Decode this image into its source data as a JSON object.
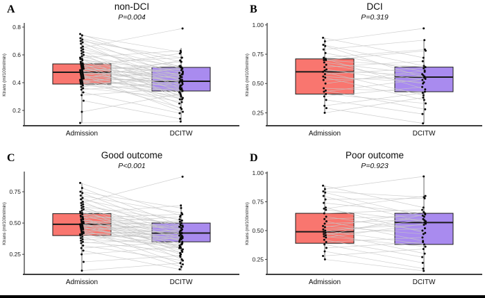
{
  "figure": {
    "background": "#ffffff",
    "bottom_bar_color": "#000000"
  },
  "styles": {
    "box_colors": [
      "#F9766F",
      "#A98BEF"
    ],
    "box_border_color": "#1a1a1a",
    "median_color": "#1a1a1a",
    "pair_line_color": "#c6c6c6",
    "point_color": "#0a0a0a",
    "axis_color": "#3c3c3c",
    "tick_label_color": "#1a1a1a"
  },
  "chart_data": [
    {
      "type": "paired-box",
      "letter": "A",
      "title": "non-DCI",
      "pvalue": "P=0.004",
      "ylabel": "Ktrans (ml/100ml/min)",
      "categories": [
        "Admission",
        "DCITW"
      ],
      "yticks": [
        0.2,
        0.4,
        0.6,
        0.8
      ],
      "ytick_labels": [
        "0.2",
        "0.4",
        "0.6",
        "0.8"
      ],
      "ylim": [
        0.09,
        0.82
      ],
      "boxes": [
        {
          "group": "Admission",
          "lo": 0.11,
          "q1": 0.39,
          "median": 0.475,
          "q3": 0.535,
          "hi": 0.75
        },
        {
          "group": "DCITW",
          "lo": 0.12,
          "q1": 0.34,
          "median": 0.41,
          "q3": 0.51,
          "hi": 0.65
        }
      ],
      "pairs": [
        [
          0.75,
          0.51
        ],
        [
          0.74,
          0.62
        ],
        [
          0.72,
          0.55
        ],
        [
          0.71,
          0.44
        ],
        [
          0.7,
          0.58
        ],
        [
          0.69,
          0.35
        ],
        [
          0.68,
          0.5
        ],
        [
          0.66,
          0.41
        ],
        [
          0.65,
          0.79
        ],
        [
          0.64,
          0.47
        ],
        [
          0.63,
          0.33
        ],
        [
          0.62,
          0.52
        ],
        [
          0.61,
          0.28
        ],
        [
          0.6,
          0.45
        ],
        [
          0.59,
          0.38
        ],
        [
          0.58,
          0.63
        ],
        [
          0.57,
          0.42
        ],
        [
          0.57,
          0.3
        ],
        [
          0.56,
          0.49
        ],
        [
          0.55,
          0.21
        ],
        [
          0.54,
          0.46
        ],
        [
          0.54,
          0.58
        ],
        [
          0.53,
          0.4
        ],
        [
          0.53,
          0.34
        ],
        [
          0.52,
          0.48
        ],
        [
          0.52,
          0.25
        ],
        [
          0.51,
          0.43
        ],
        [
          0.51,
          0.61
        ],
        [
          0.5,
          0.37
        ],
        [
          0.5,
          0.45
        ],
        [
          0.49,
          0.52
        ],
        [
          0.49,
          0.31
        ],
        [
          0.48,
          0.41
        ],
        [
          0.48,
          0.55
        ],
        [
          0.47,
          0.36
        ],
        [
          0.47,
          0.44
        ],
        [
          0.46,
          0.28
        ],
        [
          0.46,
          0.5
        ],
        [
          0.45,
          0.39
        ],
        [
          0.45,
          0.19
        ],
        [
          0.44,
          0.47
        ],
        [
          0.44,
          0.33
        ],
        [
          0.43,
          0.41
        ],
        [
          0.43,
          0.56
        ],
        [
          0.42,
          0.35
        ],
        [
          0.42,
          0.22
        ],
        [
          0.41,
          0.44
        ],
        [
          0.41,
          0.3
        ],
        [
          0.4,
          0.38
        ],
        [
          0.4,
          0.51
        ],
        [
          0.39,
          0.26
        ],
        [
          0.39,
          0.42
        ],
        [
          0.38,
          0.34
        ],
        [
          0.37,
          0.46
        ],
        [
          0.36,
          0.29
        ],
        [
          0.35,
          0.4
        ],
        [
          0.33,
          0.18
        ],
        [
          0.31,
          0.36
        ],
        [
          0.27,
          0.14
        ],
        [
          0.19,
          0.32
        ],
        [
          0.11,
          0.12
        ]
      ]
    },
    {
      "type": "paired-box",
      "letter": "B",
      "title": "DCI",
      "pvalue": "P=0.319",
      "ylabel": "Ktrans (ml/100ml/min)",
      "categories": [
        "Admission",
        "DCITW"
      ],
      "yticks": [
        0.25,
        0.5,
        0.75,
        1.0
      ],
      "ytick_labels": [
        "0.25",
        "0.50",
        "0.75",
        "1.00"
      ],
      "ylim": [
        0.14,
        1.005
      ],
      "boxes": [
        {
          "group": "Admission",
          "lo": 0.25,
          "q1": 0.41,
          "median": 0.6,
          "q3": 0.71,
          "hi": 0.89
        },
        {
          "group": "DCITW",
          "lo": 0.16,
          "q1": 0.43,
          "median": 0.555,
          "q3": 0.64,
          "hi": 0.87
        }
      ],
      "pairs": [
        [
          0.89,
          0.72
        ],
        [
          0.86,
          0.97
        ],
        [
          0.83,
          0.65
        ],
        [
          0.82,
          0.55
        ],
        [
          0.79,
          0.87
        ],
        [
          0.76,
          0.6
        ],
        [
          0.72,
          0.79
        ],
        [
          0.71,
          0.45
        ],
        [
          0.7,
          0.64
        ],
        [
          0.7,
          0.78
        ],
        [
          0.68,
          0.58
        ],
        [
          0.66,
          0.53
        ],
        [
          0.64,
          0.69
        ],
        [
          0.62,
          0.5
        ],
        [
          0.61,
          0.57
        ],
        [
          0.6,
          0.4
        ],
        [
          0.58,
          0.63
        ],
        [
          0.56,
          0.51
        ],
        [
          0.55,
          0.36
        ],
        [
          0.53,
          0.56
        ],
        [
          0.5,
          0.61
        ],
        [
          0.46,
          0.43
        ],
        [
          0.44,
          0.28
        ],
        [
          0.43,
          0.54
        ],
        [
          0.41,
          0.33
        ],
        [
          0.39,
          0.47
        ],
        [
          0.36,
          0.24
        ],
        [
          0.31,
          0.42
        ],
        [
          0.29,
          0.16
        ],
        [
          0.25,
          0.38
        ]
      ]
    },
    {
      "type": "paired-box",
      "letter": "C",
      "title": "Good outcome",
      "pvalue": "P<0.001",
      "ylabel": "Ktrans (ml/100ml/min)",
      "categories": [
        "Admission",
        "DCITW"
      ],
      "yticks": [
        0.25,
        0.5,
        0.75
      ],
      "ytick_labels": [
        "0.25",
        "0.50",
        "0.75"
      ],
      "ylim": [
        0.09,
        0.9
      ],
      "boxes": [
        {
          "group": "Admission",
          "lo": 0.12,
          "q1": 0.4,
          "median": 0.49,
          "q3": 0.575,
          "hi": 0.82
        },
        {
          "group": "DCITW",
          "lo": 0.12,
          "q1": 0.35,
          "median": 0.42,
          "q3": 0.5,
          "hi": 0.65
        }
      ],
      "pairs": [
        [
          0.82,
          0.56
        ],
        [
          0.78,
          0.48
        ],
        [
          0.75,
          0.62
        ],
        [
          0.74,
          0.44
        ],
        [
          0.72,
          0.58
        ],
        [
          0.7,
          0.4
        ],
        [
          0.69,
          0.52
        ],
        [
          0.67,
          0.35
        ],
        [
          0.66,
          0.87
        ],
        [
          0.65,
          0.47
        ],
        [
          0.64,
          0.3
        ],
        [
          0.63,
          0.53
        ],
        [
          0.62,
          0.42
        ],
        [
          0.61,
          0.26
        ],
        [
          0.6,
          0.49
        ],
        [
          0.59,
          0.38
        ],
        [
          0.58,
          0.64
        ],
        [
          0.58,
          0.44
        ],
        [
          0.57,
          0.33
        ],
        [
          0.56,
          0.5
        ],
        [
          0.55,
          0.21
        ],
        [
          0.55,
          0.45
        ],
        [
          0.54,
          0.57
        ],
        [
          0.53,
          0.39
        ],
        [
          0.53,
          0.29
        ],
        [
          0.52,
          0.47
        ],
        [
          0.51,
          0.36
        ],
        [
          0.51,
          0.43
        ],
        [
          0.5,
          0.55
        ],
        [
          0.5,
          0.31
        ],
        [
          0.49,
          0.41
        ],
        [
          0.49,
          0.25
        ],
        [
          0.48,
          0.46
        ],
        [
          0.48,
          0.37
        ],
        [
          0.47,
          0.52
        ],
        [
          0.47,
          0.28
        ],
        [
          0.46,
          0.42
        ],
        [
          0.46,
          0.34
        ],
        [
          0.45,
          0.48
        ],
        [
          0.45,
          0.17
        ],
        [
          0.44,
          0.4
        ],
        [
          0.43,
          0.32
        ],
        [
          0.43,
          0.51
        ],
        [
          0.42,
          0.37
        ],
        [
          0.42,
          0.23
        ],
        [
          0.41,
          0.44
        ],
        [
          0.41,
          0.3
        ],
        [
          0.4,
          0.39
        ],
        [
          0.39,
          0.15
        ],
        [
          0.38,
          0.42
        ],
        [
          0.37,
          0.33
        ],
        [
          0.36,
          0.45
        ],
        [
          0.35,
          0.27
        ],
        [
          0.34,
          0.38
        ],
        [
          0.32,
          0.2
        ],
        [
          0.3,
          0.35
        ],
        [
          0.28,
          0.13
        ],
        [
          0.25,
          0.31
        ],
        [
          0.19,
          0.24
        ],
        [
          0.12,
          0.18
        ]
      ]
    },
    {
      "type": "paired-box",
      "letter": "D",
      "title": "Poor outcome",
      "pvalue": "P=0.923",
      "ylabel": "Ktrans (ml/100ml/min)",
      "categories": [
        "Admission",
        "DCITW"
      ],
      "yticks": [
        0.25,
        0.5,
        0.75,
        1.0
      ],
      "ytick_labels": [
        "0.25",
        "0.50",
        "0.75",
        "1.00"
      ],
      "ylim": [
        0.12,
        1.0
      ],
      "boxes": [
        {
          "group": "Admission",
          "lo": 0.25,
          "q1": 0.39,
          "median": 0.49,
          "q3": 0.65,
          "hi": 0.89
        },
        {
          "group": "DCITW",
          "lo": 0.15,
          "q1": 0.38,
          "median": 0.57,
          "q3": 0.65,
          "hi": 0.97
        }
      ],
      "pairs": [
        [
          0.89,
          0.7
        ],
        [
          0.86,
          0.97
        ],
        [
          0.84,
          0.79
        ],
        [
          0.83,
          0.62
        ],
        [
          0.8,
          0.57
        ],
        [
          0.77,
          0.78
        ],
        [
          0.74,
          0.65
        ],
        [
          0.7,
          0.48
        ],
        [
          0.69,
          0.8
        ],
        [
          0.68,
          0.58
        ],
        [
          0.65,
          0.68
        ],
        [
          0.62,
          0.5
        ],
        [
          0.6,
          0.63
        ],
        [
          0.58,
          0.41
        ],
        [
          0.56,
          0.6
        ],
        [
          0.54,
          0.47
        ],
        [
          0.53,
          0.66
        ],
        [
          0.51,
          0.55
        ],
        [
          0.5,
          0.38
        ],
        [
          0.49,
          0.59
        ],
        [
          0.48,
          0.3
        ],
        [
          0.47,
          0.52
        ],
        [
          0.46,
          0.64
        ],
        [
          0.45,
          0.36
        ],
        [
          0.44,
          0.56
        ],
        [
          0.42,
          0.27
        ],
        [
          0.4,
          0.44
        ],
        [
          0.38,
          0.22
        ],
        [
          0.35,
          0.4
        ],
        [
          0.32,
          0.17
        ],
        [
          0.28,
          0.34
        ],
        [
          0.25,
          0.15
        ]
      ]
    }
  ]
}
